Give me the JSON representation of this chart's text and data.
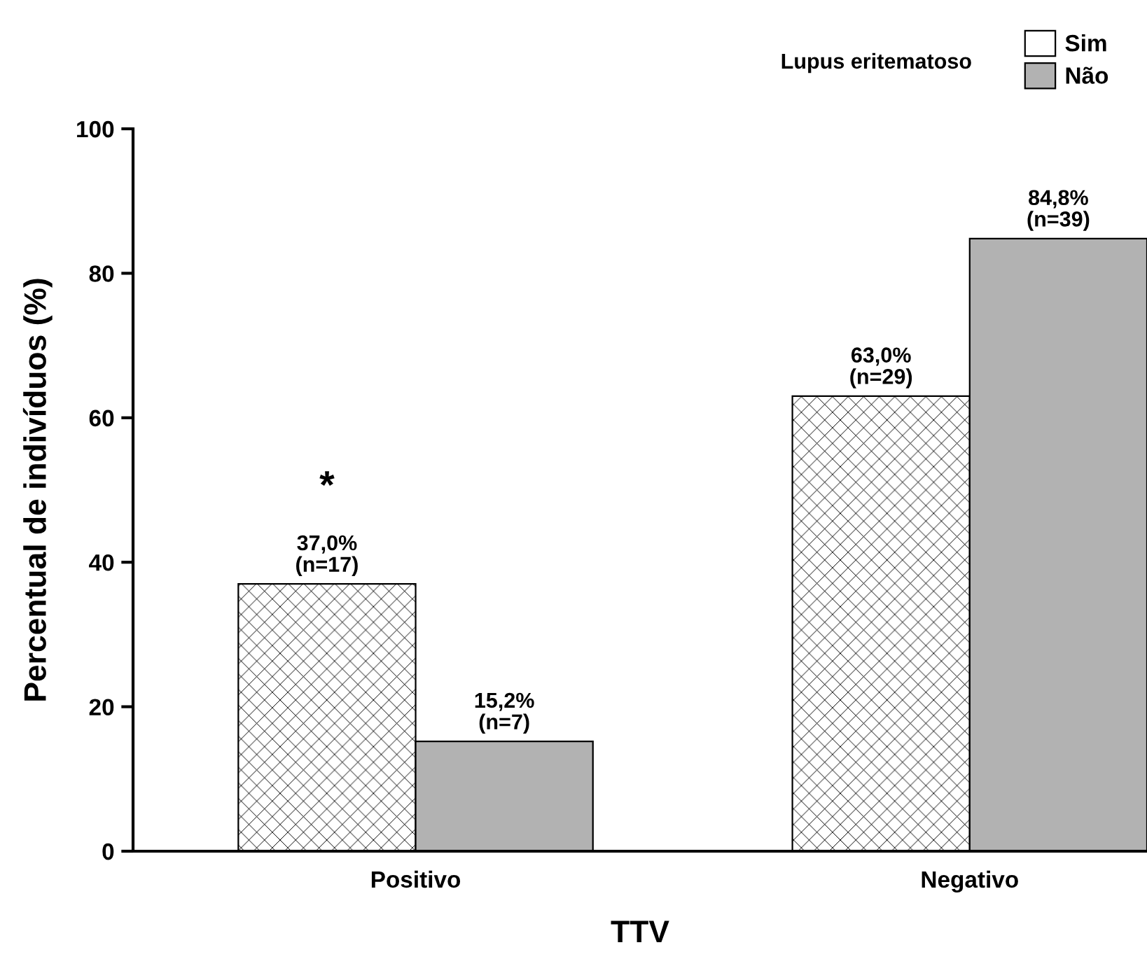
{
  "chart_data": {
    "type": "bar",
    "xlabel": "TTV",
    "ylabel": "Percentual de indivíduos (%)",
    "legend_title": "Lupus eritematoso",
    "categories": [
      "Positivo",
      "Negativo"
    ],
    "series": [
      {
        "name": "Sim",
        "color": "#ffffff",
        "values": [
          37.0,
          63.0
        ],
        "value_labels": [
          "37,0%\n(n=17)",
          "63,0%\n(n=29)"
        ]
      },
      {
        "name": "Não",
        "color": "#b2b2b2",
        "values": [
          15.2,
          84.8
        ],
        "value_labels": [
          "15,2%\n(n=7)",
          "84,8%\n(n=39)"
        ]
      }
    ],
    "ylim": [
      0,
      100
    ],
    "yticks": [
      0,
      20,
      40,
      60,
      80,
      100
    ],
    "grid": false,
    "legend": "top right",
    "annotations": [
      "*"
    ]
  }
}
